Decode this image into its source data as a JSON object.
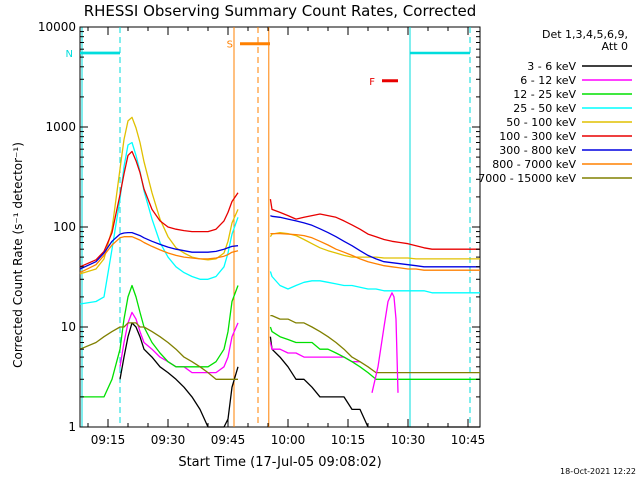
{
  "chart_data": {
    "type": "line",
    "title": "RHESSI Observing Summary Count Rates, Corrected",
    "xlabel": "Start Time (17-Jul-05 09:08:02)",
    "ylabel": "Corrected Count Rate (s⁻¹ detector⁻¹)",
    "x_unit": "minutes after 09:08:02",
    "xlim": [
      0,
      100
    ],
    "ylim": [
      1,
      10000
    ],
    "yscale": "log",
    "x_ticks": [
      {
        "x": 7,
        "label": "09:15"
      },
      {
        "x": 22,
        "label": "09:30"
      },
      {
        "x": 37,
        "label": "09:45"
      },
      {
        "x": 52,
        "label": "10:00"
      },
      {
        "x": 67,
        "label": "10:15"
      },
      {
        "x": 82,
        "label": "10:30"
      },
      {
        "x": 97,
        "label": "10:45"
      }
    ],
    "y_ticks": [
      {
        "y": 1,
        "label": "1"
      },
      {
        "y": 10,
        "label": "10"
      },
      {
        "y": 100,
        "label": "100"
      },
      {
        "y": 1000,
        "label": "1000"
      },
      {
        "y": 10000,
        "label": "10000"
      }
    ],
    "legend": {
      "position": "right",
      "header": [
        "Det 1,3,4,5,6,9,",
        "Att 0"
      ]
    },
    "series": [
      {
        "name": "3 - 6 keV",
        "color": "#000000",
        "x": [
          0,
          4,
          6,
          8,
          10,
          11,
          12,
          13,
          14,
          15,
          16,
          18,
          20,
          22,
          24,
          26,
          28,
          30,
          32,
          34,
          36,
          37,
          38,
          39.5,
          47,
          47.6,
          48,
          50,
          52,
          54,
          56,
          58,
          60,
          62,
          64,
          66,
          68,
          70,
          72,
          74,
          76,
          78,
          80,
          82,
          84,
          86,
          88,
          90,
          92,
          94,
          96,
          98,
          100
        ],
        "y": [
          null,
          null,
          null,
          null,
          3,
          5,
          8,
          11,
          10,
          8,
          6,
          5,
          4,
          3.5,
          3,
          2.5,
          2,
          1.5,
          1,
          1,
          1,
          1.2,
          2.5,
          4,
          null,
          8,
          6,
          5,
          4,
          3,
          3,
          2.5,
          2,
          2,
          2,
          2,
          1.5,
          1.5,
          1,
          1,
          1,
          1,
          1,
          1,
          1,
          1,
          1,
          1,
          1,
          1,
          1,
          1,
          1
        ]
      },
      {
        "name": "6 - 12 keV",
        "color": "#ff00ff",
        "x": [
          0,
          4,
          6,
          8,
          10,
          11,
          12,
          13,
          14,
          15,
          16,
          18,
          20,
          22,
          24,
          26,
          28,
          30,
          32,
          34,
          36,
          37,
          38,
          39.5,
          47,
          47.6,
          48,
          50,
          52,
          54,
          56,
          58,
          60,
          62,
          64,
          66,
          68,
          70,
          72,
          74,
          76,
          78,
          80,
          82,
          84,
          86,
          88,
          90,
          92,
          94,
          96,
          98,
          100
        ],
        "y": [
          null,
          null,
          null,
          null,
          4,
          7,
          11,
          14,
          12,
          9,
          7,
          6,
          5,
          4.5,
          4,
          4,
          3.5,
          3.5,
          3.5,
          3.5,
          4,
          5,
          8,
          11,
          null,
          7,
          6,
          6,
          5.5,
          5.5,
          5,
          5,
          5,
          5,
          5,
          5,
          4.5,
          4.5,
          null,
          null,
          null,
          null,
          null,
          null,
          null,
          null,
          null,
          null,
          null,
          null,
          null,
          null,
          null
        ]
      },
      {
        "name": "12 - 25 keV",
        "color": "#00e000",
        "x": [
          0,
          4,
          6,
          8,
          10,
          11,
          12,
          13,
          14,
          15,
          16,
          18,
          20,
          22,
          24,
          26,
          28,
          30,
          32,
          34,
          36,
          37,
          38,
          39.5,
          47,
          47.6,
          48,
          50,
          52,
          54,
          56,
          58,
          60,
          62,
          64,
          66,
          68,
          70,
          72,
          74,
          76,
          78,
          80,
          82,
          84,
          86,
          88,
          90,
          92,
          94,
          96,
          98,
          100
        ],
        "y": [
          2,
          2,
          2,
          3,
          6,
          12,
          20,
          26,
          20,
          14,
          10,
          7,
          5.5,
          4.5,
          4,
          4,
          4,
          4,
          4,
          4.5,
          6,
          9,
          18,
          26,
          null,
          10,
          9,
          8,
          7.5,
          7,
          7,
          7,
          6,
          6,
          5.5,
          5,
          4.5,
          4,
          3.5,
          3,
          3,
          3,
          3,
          3,
          3,
          3,
          3,
          3,
          3,
          3,
          3,
          3,
          3
        ]
      },
      {
        "name": "25 - 50 keV",
        "color": "#00ffff",
        "x": [
          0,
          4,
          6,
          8,
          10,
          11,
          12,
          13,
          14,
          15,
          16,
          18,
          20,
          22,
          24,
          26,
          28,
          30,
          32,
          34,
          36,
          37,
          38,
          39.5,
          47,
          47.6,
          48,
          50,
          52,
          54,
          56,
          58,
          60,
          62,
          64,
          66,
          68,
          70,
          72,
          74,
          76,
          78,
          80,
          82,
          84,
          86,
          88,
          90,
          92,
          94,
          96,
          98,
          100
        ],
        "y": [
          17,
          18,
          20,
          60,
          190,
          400,
          660,
          700,
          520,
          360,
          230,
          120,
          70,
          50,
          40,
          35,
          32,
          30,
          30,
          32,
          40,
          55,
          85,
          125,
          null,
          36,
          32,
          26,
          24,
          26,
          28,
          29,
          29,
          28,
          27,
          26,
          26,
          25,
          24,
          24,
          23,
          23,
          23,
          23,
          23,
          23,
          22,
          22,
          22,
          22,
          22,
          22,
          22
        ]
      },
      {
        "name": "50 - 100 keV",
        "color": "#e0c000",
        "x": [
          0,
          4,
          6,
          8,
          10,
          11,
          12,
          13,
          14,
          15,
          16,
          18,
          20,
          22,
          24,
          26,
          28,
          30,
          32,
          34,
          36,
          37,
          38,
          39.5,
          47,
          47.6,
          48,
          50,
          52,
          54,
          56,
          58,
          60,
          62,
          64,
          66,
          68,
          70,
          72,
          74,
          76,
          78,
          80,
          82,
          84,
          86,
          88,
          90,
          92,
          94,
          96,
          98,
          100
        ],
        "y": [
          34,
          38,
          48,
          95,
          380,
          750,
          1150,
          1250,
          980,
          700,
          450,
          220,
          120,
          80,
          62,
          55,
          50,
          48,
          47,
          48,
          55,
          72,
          110,
          150,
          null,
          80,
          85,
          88,
          86,
          82,
          75,
          68,
          62,
          58,
          55,
          52,
          50,
          50,
          50,
          50,
          49,
          49,
          49,
          49,
          48,
          48,
          48,
          48,
          48,
          48,
          48,
          48,
          48
        ]
      },
      {
        "name": "100 - 300 keV",
        "color": "#e80000",
        "x": [
          0,
          4,
          6,
          8,
          10,
          11,
          12,
          13,
          14,
          15,
          16,
          18,
          20,
          22,
          24,
          26,
          28,
          30,
          32,
          34,
          36,
          37,
          38,
          39.5,
          47,
          47.6,
          48,
          50,
          52,
          54,
          56,
          58,
          60,
          62,
          64,
          66,
          68,
          70,
          72,
          74,
          76,
          78,
          80,
          82,
          84,
          86,
          88,
          90,
          92,
          94,
          96,
          98,
          100
        ],
        "y": [
          40,
          47,
          57,
          88,
          210,
          340,
          520,
          570,
          460,
          350,
          240,
          150,
          115,
          100,
          95,
          92,
          90,
          90,
          90,
          95,
          115,
          140,
          180,
          220,
          null,
          190,
          150,
          140,
          130,
          120,
          125,
          130,
          135,
          130,
          125,
          115,
          105,
          95,
          85,
          80,
          75,
          72,
          70,
          68,
          65,
          62,
          60,
          60,
          60,
          60,
          60,
          60,
          60
        ]
      },
      {
        "name": "300 - 800 keV",
        "color": "#0000e0",
        "x": [
          0,
          4,
          6,
          8,
          10,
          11,
          12,
          13,
          14,
          15,
          16,
          18,
          20,
          22,
          24,
          26,
          28,
          30,
          32,
          34,
          36,
          37,
          38,
          39.5,
          47,
          47.6,
          48,
          50,
          52,
          54,
          56,
          58,
          60,
          62,
          64,
          66,
          68,
          70,
          72,
          74,
          76,
          78,
          80,
          82,
          84,
          86,
          88,
          90,
          92,
          94,
          96,
          98,
          100
        ],
        "y": [
          38,
          45,
          55,
          72,
          85,
          87,
          88,
          88,
          85,
          82,
          78,
          72,
          67,
          63,
          60,
          58,
          56,
          56,
          56,
          57,
          60,
          62,
          64,
          65,
          null,
          130,
          128,
          125,
          120,
          115,
          110,
          104,
          96,
          88,
          80,
          72,
          65,
          58,
          52,
          48,
          45,
          44,
          43,
          42,
          41,
          40,
          40,
          40,
          40,
          40,
          40,
          40,
          40
        ]
      },
      {
        "name": "800 - 7000 keV",
        "color": "#ff8000",
        "x": [
          0,
          4,
          6,
          8,
          10,
          11,
          12,
          13,
          14,
          15,
          16,
          18,
          20,
          22,
          24,
          26,
          28,
          30,
          32,
          34,
          36,
          37,
          38,
          39.5,
          47,
          47.6,
          48,
          50,
          52,
          54,
          56,
          58,
          60,
          62,
          64,
          66,
          68,
          70,
          72,
          74,
          76,
          78,
          80,
          82,
          84,
          86,
          88,
          90,
          92,
          94,
          96,
          98,
          100
        ],
        "y": [
          35,
          42,
          52,
          66,
          78,
          80,
          80,
          80,
          77,
          74,
          70,
          64,
          59,
          55,
          52,
          50,
          49,
          48,
          48,
          49,
          51,
          53,
          56,
          58,
          null,
          86,
          86,
          86,
          85,
          84,
          82,
          78,
          72,
          66,
          60,
          56,
          52,
          48,
          45,
          43,
          41,
          40,
          39,
          38,
          38,
          37,
          37,
          37,
          37,
          37,
          37,
          37,
          37
        ]
      },
      {
        "name": "7000 - 15000 keV",
        "color": "#808000",
        "x": [
          0,
          4,
          6,
          8,
          10,
          11,
          12,
          13,
          14,
          15,
          16,
          18,
          20,
          22,
          24,
          26,
          28,
          30,
          32,
          34,
          36,
          37,
          38,
          39.5,
          47,
          47.6,
          48,
          50,
          52,
          54,
          56,
          58,
          60,
          62,
          64,
          66,
          68,
          70,
          72,
          74,
          76,
          78,
          80,
          82,
          84,
          86,
          88,
          90,
          92,
          94,
          96,
          98,
          100
        ],
        "y": [
          6,
          7,
          8,
          9,
          10,
          10,
          11,
          11,
          11,
          10,
          10,
          9,
          8,
          7,
          6,
          5,
          4.5,
          4,
          3.5,
          3,
          3,
          3,
          3,
          3,
          null,
          13,
          13,
          12,
          12,
          11,
          11,
          10,
          9,
          8,
          7,
          6,
          5,
          4.5,
          4,
          3.5,
          3.5,
          3.5,
          3.5,
          3.5,
          3.5,
          3.5,
          3.5,
          3.5,
          3.5,
          3.5,
          3.5,
          3.5,
          3.5
        ]
      }
    ],
    "extra_trace": {
      "color": "#ff00ff",
      "x": [
        73,
        74.5,
        76,
        77,
        78,
        78.5,
        79,
        79.5
      ],
      "y": [
        2.2,
        4,
        10,
        18,
        22,
        20,
        12,
        2.2
      ]
    },
    "regions": [
      {
        "label": "N",
        "color": "#00dddd",
        "x_start": 10,
        "x_end": 10,
        "bar_x_start": 0,
        "bar_x_end": 10,
        "bar_y": 5500,
        "bar_width": 2.5
      },
      {
        "label": "S",
        "color": "#ff8000",
        "x_start": 38,
        "x_end": 43,
        "x_end2": 47,
        "bar_x_start": 40,
        "bar_x_end": 47.5,
        "bar_y": 6800,
        "bar_width": 3
      },
      {
        "label": "F",
        "color": "#e80000",
        "bar_x_start": 75.5,
        "bar_x_end": 79.5,
        "bar_y": 2900,
        "bar_width": 3
      }
    ],
    "day_boundaries": [
      {
        "x": 0.5,
        "color": "#00dddd",
        "style": "solid"
      },
      {
        "x": 10,
        "color": "#00dddd",
        "style": "dashed"
      },
      {
        "x": 38.5,
        "color": "#ff8000",
        "style": "solid"
      },
      {
        "x": 44.5,
        "color": "#ff8000",
        "style": "dashed"
      },
      {
        "x": 47.2,
        "color": "#ff8000",
        "style": "solid"
      },
      {
        "x": 82.5,
        "color": "#00dddd",
        "style": "solid"
      },
      {
        "x": 97.5,
        "color": "#00dddd",
        "style": "dashed"
      }
    ],
    "night_bars": [
      {
        "color": "#00dddd",
        "x_start": 0.5,
        "x_end": 10,
        "y": 5500
      },
      {
        "color": "#00dddd",
        "x_start": 82.5,
        "x_end": 97.5,
        "y": 5500
      }
    ],
    "grid": false
  },
  "footer": {
    "timestamp": "18-Oct-2021 12:22"
  }
}
